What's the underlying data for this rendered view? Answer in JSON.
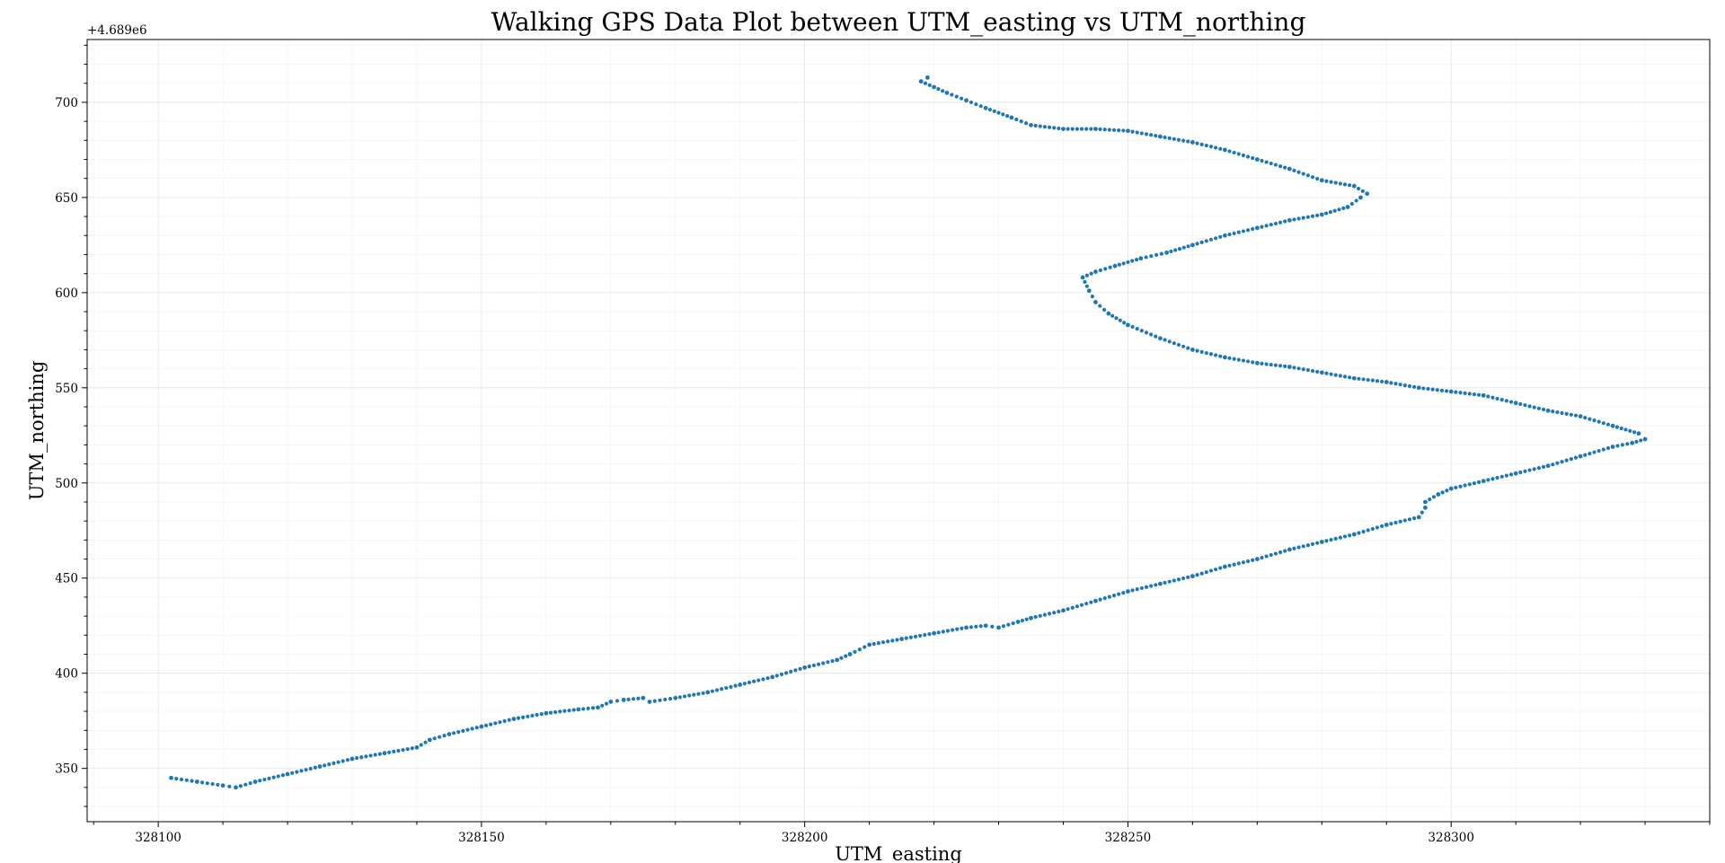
{
  "chart_data": {
    "type": "scatter",
    "title": "Walking GPS Data Plot between UTM_easting vs UTM_northing",
    "xlabel": "UTM_easting",
    "ylabel": "UTM_northing",
    "y_offset_label": "+4.689e6",
    "y_offset": 4689000,
    "xlim": [
      328089,
      328340
    ],
    "ylim": [
      322,
      733
    ],
    "xticks": [
      328100,
      328150,
      328200,
      328250,
      328300
    ],
    "yticks": [
      350,
      400,
      450,
      500,
      550,
      600,
      650,
      700
    ],
    "xtick_labels": [
      "328100",
      "328150",
      "328200",
      "328250",
      "328300"
    ],
    "ytick_labels": [
      "350",
      "400",
      "450",
      "500",
      "550",
      "600",
      "650",
      "700"
    ],
    "grid": true,
    "minor_grid": true,
    "marker_color": "#1f77b4",
    "series": [
      {
        "x": [
          328102,
          328106,
          328110,
          328112,
          328115,
          328120,
          328125,
          328130,
          328135,
          328140,
          328142,
          328145,
          328150,
          328155,
          328160,
          328165,
          328168,
          328170,
          328172,
          328175,
          328176,
          328180,
          328185,
          328190,
          328195,
          328200,
          328205,
          328207,
          328210,
          328215,
          328220,
          328225,
          328228,
          328230,
          328233,
          328235,
          328240,
          328245,
          328250,
          328255,
          328260,
          328265,
          328270,
          328275,
          328280,
          328285,
          328290,
          328295,
          328296,
          328296,
          328298,
          328300,
          328305,
          328310,
          328315,
          328320,
          328325,
          328328,
          328330,
          328329,
          328325,
          328320,
          328315,
          328310,
          328305,
          328300,
          328295,
          328290,
          328285,
          328280,
          328275,
          328270,
          328265,
          328260,
          328255,
          328250,
          328247,
          328245,
          328244,
          328243,
          328245,
          328248,
          328252,
          328256,
          328260,
          328265,
          328270,
          328275,
          328280,
          328284,
          328286,
          328287,
          328285,
          328280,
          328275,
          328270,
          328265,
          328260,
          328255,
          328250,
          328245,
          328240,
          328235,
          328232,
          328228,
          328225,
          328222,
          328220,
          328218,
          328219
        ],
        "y": [
          345,
          343,
          341,
          340,
          343,
          347,
          351,
          355,
          358,
          361,
          365,
          368,
          372,
          376,
          379,
          381,
          382,
          385,
          386,
          387,
          385,
          387,
          390,
          394,
          398,
          403,
          407,
          410,
          415,
          418,
          421,
          424,
          425,
          424,
          427,
          429,
          433,
          438,
          443,
          447,
          451,
          456,
          460,
          465,
          469,
          473,
          478,
          482,
          487,
          490,
          494,
          497,
          501,
          505,
          509,
          514,
          519,
          521,
          523,
          526,
          530,
          535,
          538,
          542,
          546,
          548,
          550,
          553,
          555,
          558,
          561,
          563,
          566,
          570,
          576,
          583,
          589,
          595,
          601,
          608,
          611,
          614,
          618,
          621,
          625,
          630,
          634,
          638,
          641,
          645,
          650,
          652,
          656,
          659,
          665,
          670,
          675,
          679,
          682,
          685,
          686,
          686,
          688,
          692,
          697,
          701,
          705,
          708,
          711,
          713
        ]
      }
    ]
  }
}
